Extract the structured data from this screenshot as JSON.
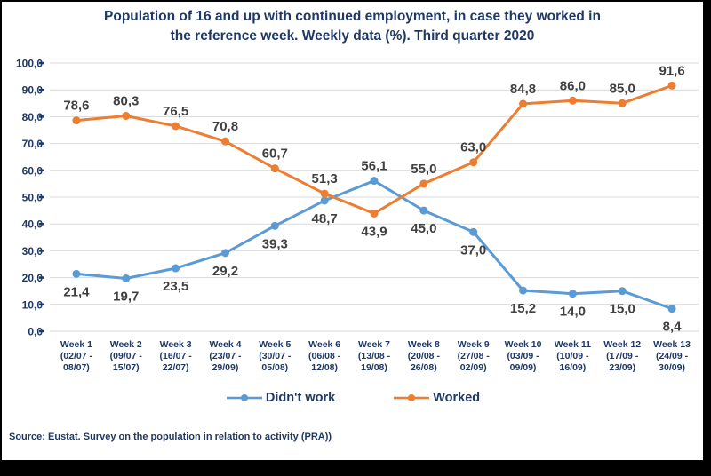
{
  "title": {
    "line1": "Population of 16 and up with continued employment, in case they worked in",
    "line2": "the reference week. Weekly data (%). Third quarter 2020"
  },
  "chart_data": {
    "type": "line",
    "categories": [
      [
        "Week 1",
        "(02/07 -",
        "08/07)"
      ],
      [
        "Week 2",
        "(09/07 -",
        "15/07)"
      ],
      [
        "Week 3",
        "(16/07 -",
        "22/07)"
      ],
      [
        "Week 4",
        "(23/07 -",
        "29/09)"
      ],
      [
        "Week 5",
        "(30/07 -",
        "05/08)"
      ],
      [
        "Week 6",
        "(06/08 -",
        "12/08)"
      ],
      [
        "Week 7",
        "(13/08 -",
        "19/08)"
      ],
      [
        "Week 8",
        "(20/08 -",
        "26/08)"
      ],
      [
        "Week 9",
        "(27/08 -",
        "02/09)"
      ],
      [
        "Week 10",
        "(03/09 -",
        "09/09)"
      ],
      [
        "Week 11",
        "(10/09 -",
        "16/09)"
      ],
      [
        "Week 12",
        "(17/09 -",
        "23/09)"
      ],
      [
        "Week 13",
        "(24/09 -",
        "30/09)"
      ]
    ],
    "series": [
      {
        "name": "Didn't work",
        "color": "#5B9BD5",
        "values": [
          21.4,
          19.7,
          23.5,
          29.2,
          39.3,
          48.7,
          56.1,
          45.0,
          37.0,
          15.2,
          14.0,
          15.0,
          8.4
        ]
      },
      {
        "name": "Worked",
        "color": "#ED7D31",
        "values": [
          78.6,
          80.3,
          76.5,
          70.8,
          60.7,
          51.3,
          43.9,
          55.0,
          63.0,
          84.8,
          86.0,
          85.0,
          91.6
        ]
      }
    ],
    "ylim": [
      0,
      100
    ],
    "ytick_step": 10,
    "decimal_separator": ",",
    "grid": true,
    "legend_position": "bottom",
    "data_labels": true
  },
  "source": "Source: Eustat. Survey on the population in relation to activity (PRA))",
  "colors": {
    "frame": "#000000",
    "background": "#ffffff",
    "axis_text": "#1F3864",
    "title_text": "#1F3864",
    "data_label_text": "#404040",
    "gridline": "#D9D9D9",
    "series_didnt_work": "#5B9BD5",
    "series_worked": "#ED7D31"
  }
}
